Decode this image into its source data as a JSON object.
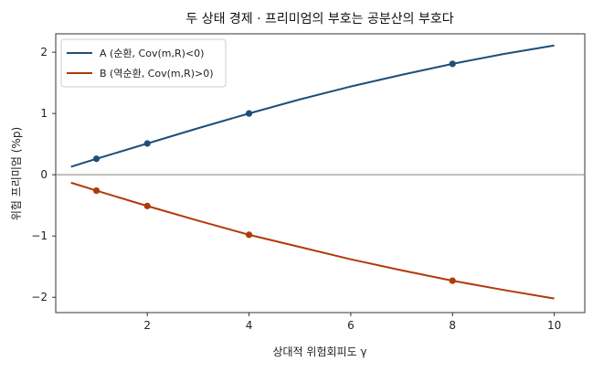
{
  "chart_data": {
    "type": "line",
    "title": "두 상태 경제 · 프리미엄의 부호는 공분산의 부호다",
    "xlabel": "상대적 위험회피도 γ",
    "ylabel": "위험 프리미엄 (%p)",
    "xlim": [
      0.2,
      10.6
    ],
    "ylim": [
      -2.25,
      2.3
    ],
    "xticks": [
      2,
      4,
      6,
      8,
      10
    ],
    "yticks": [
      -2,
      -1,
      0,
      1,
      2
    ],
    "grid": false,
    "legend_position": "top-left",
    "zero_line": 0,
    "series": [
      {
        "name": "A (순환, Cov(m,R)<0)",
        "color": "#1f4e79",
        "x": [
          0.5,
          1,
          2,
          3,
          4,
          5,
          6,
          7,
          8,
          9,
          10
        ],
        "y": [
          0.13,
          0.26,
          0.51,
          0.76,
          1.0,
          1.23,
          1.44,
          1.63,
          1.81,
          1.97,
          2.11
        ],
        "markers_x": [
          1,
          2,
          4,
          8
        ],
        "markers_y": [
          0.26,
          0.51,
          1.0,
          1.81
        ]
      },
      {
        "name": "B (역순환, Cov(m,R)>0)",
        "color": "#b03a0a",
        "x": [
          0.5,
          1,
          2,
          3,
          4,
          5,
          6,
          7,
          8,
          9,
          10
        ],
        "y": [
          -0.13,
          -0.26,
          -0.51,
          -0.75,
          -0.98,
          -1.18,
          -1.38,
          -1.56,
          -1.73,
          -1.88,
          -2.02
        ],
        "markers_x": [
          1,
          2,
          4,
          8
        ],
        "markers_y": [
          -0.26,
          -0.51,
          -0.98,
          -1.73
        ]
      }
    ]
  }
}
